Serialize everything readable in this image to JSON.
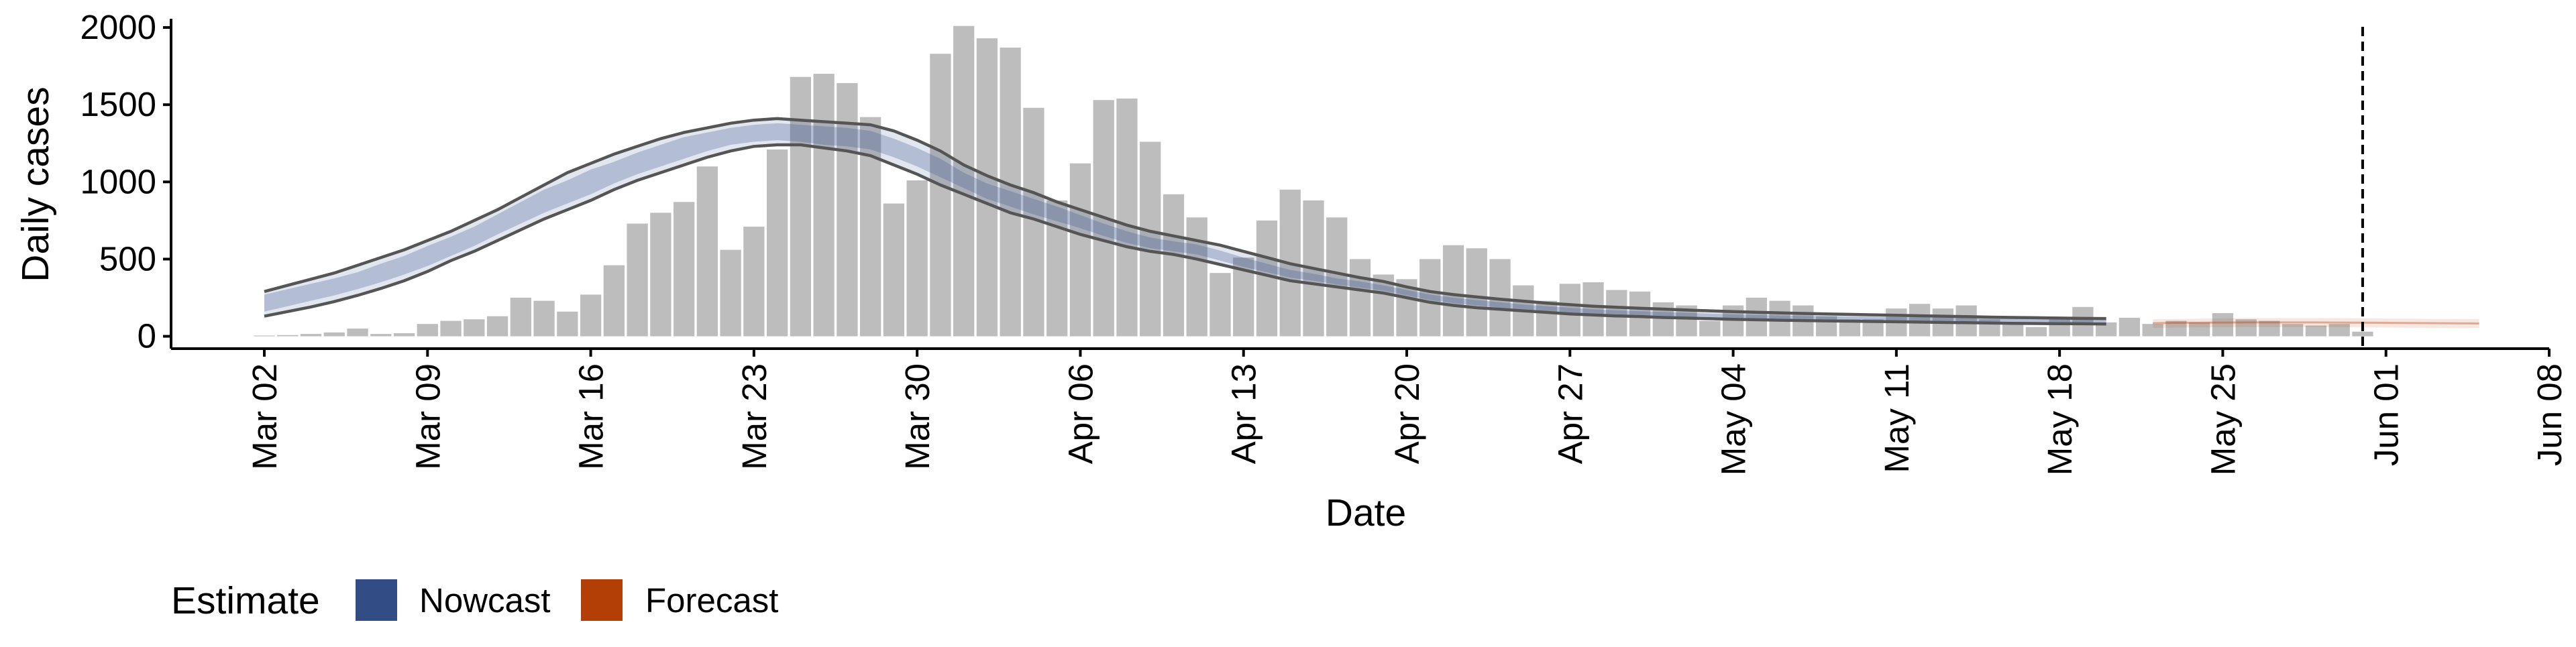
{
  "chart_data": {
    "type": "bar",
    "xlabel": "Date",
    "ylabel": "Daily cases",
    "ylim": [
      -80,
      2100
    ],
    "xlim": [
      "2020-02-27",
      "2020-06-08"
    ],
    "y_ticks": [
      0,
      500,
      1000,
      1500,
      2000
    ],
    "y_tick_labels": [
      "0",
      "500",
      "1000",
      "1500",
      "2000"
    ],
    "x_ticks": [
      "2020-03-02",
      "2020-03-09",
      "2020-03-16",
      "2020-03-23",
      "2020-03-30",
      "2020-04-06",
      "2020-04-13",
      "2020-04-20",
      "2020-04-27",
      "2020-05-04",
      "2020-05-11",
      "2020-05-18",
      "2020-05-25",
      "2020-06-01",
      "2020-06-08"
    ],
    "x_tick_labels": [
      "Mar 02",
      "Mar 09",
      "Mar 16",
      "Mar 23",
      "Mar 30",
      "Apr 06",
      "Apr 13",
      "Apr 20",
      "Apr 27",
      "May 04",
      "May 11",
      "May 18",
      "May 25",
      "Jun 01",
      "Jun 08"
    ],
    "grid": false,
    "vline_date": "2020-05-31",
    "bars": {
      "start_date": "2020-03-02",
      "values": [
        5,
        8,
        15,
        25,
        50,
        15,
        20,
        80,
        100,
        110,
        130,
        250,
        230,
        160,
        270,
        460,
        730,
        800,
        870,
        1100,
        560,
        710,
        1210,
        1680,
        1700,
        1640,
        1420,
        860,
        1010,
        1830,
        2010,
        1930,
        1870,
        1480,
        880,
        1120,
        1530,
        1540,
        1260,
        920,
        770,
        410,
        510,
        750,
        950,
        880,
        770,
        500,
        400,
        370,
        500,
        590,
        570,
        500,
        330,
        230,
        340,
        350,
        300,
        290,
        220,
        200,
        100,
        200,
        250,
        230,
        200,
        130,
        110,
        110,
        180,
        210,
        180,
        200,
        110,
        90,
        60,
        120,
        190,
        90,
        120,
        80,
        100,
        90,
        150,
        110,
        100,
        80,
        70,
        80,
        30
      ],
      "color": "#bdbdbd"
    },
    "estimate": {
      "start_date": "2020-03-02",
      "median": [
        215,
        250,
        285,
        320,
        360,
        410,
        460,
        520,
        580,
        645,
        720,
        800,
        880,
        930,
        1000,
        1060,
        1120,
        1170,
        1220,
        1260,
        1300,
        1320,
        1330,
        1310,
        1300,
        1290,
        1270,
        1220,
        1160,
        1090,
        1010,
        940,
        890,
        840,
        790,
        740,
        690,
        640,
        600,
        580,
        560,
        520,
        480,
        440,
        400,
        380,
        350,
        330,
        310,
        280,
        250,
        230,
        215,
        200,
        190,
        180,
        170,
        160,
        155,
        150,
        145,
        140,
        135,
        130,
        127,
        124,
        122,
        120,
        118,
        116,
        114,
        112,
        110,
        108,
        106,
        104,
        103,
        102,
        101,
        100
      ],
      "ci50_lower": [
        160,
        195,
        230,
        265,
        305,
        350,
        400,
        455,
        520,
        585,
        660,
        730,
        800,
        860,
        920,
        990,
        1050,
        1100,
        1150,
        1200,
        1240,
        1260,
        1270,
        1260,
        1240,
        1230,
        1210,
        1160,
        1100,
        1030,
        960,
        890,
        840,
        790,
        745,
        700,
        650,
        605,
        570,
        550,
        530,
        490,
        450,
        415,
        380,
        360,
        335,
        315,
        295,
        265,
        235,
        215,
        200,
        185,
        175,
        165,
        155,
        148,
        142,
        138,
        132,
        128,
        124,
        120,
        117,
        114,
        112,
        110,
        108,
        106,
        104,
        102,
        100,
        98,
        96,
        94,
        93,
        92,
        91,
        90
      ],
      "ci50_upper": [
        270,
        305,
        340,
        375,
        415,
        470,
        520,
        585,
        645,
        710,
        790,
        870,
        950,
        1010,
        1080,
        1130,
        1190,
        1240,
        1290,
        1320,
        1350,
        1370,
        1380,
        1370,
        1360,
        1350,
        1330,
        1280,
        1220,
        1150,
        1060,
        990,
        940,
        890,
        840,
        785,
        730,
        680,
        640,
        615,
        595,
        555,
        510,
        470,
        430,
        405,
        375,
        355,
        330,
        300,
        270,
        250,
        235,
        220,
        205,
        195,
        185,
        175,
        168,
        162,
        158,
        152,
        147,
        142,
        138,
        135,
        132,
        130,
        128,
        126,
        124,
        122,
        120,
        118,
        116,
        114,
        113,
        112,
        111,
        110
      ],
      "ci90_lower": [
        130,
        160,
        190,
        225,
        265,
        310,
        360,
        420,
        490,
        550,
        620,
        690,
        760,
        820,
        880,
        950,
        1010,
        1060,
        1110,
        1160,
        1200,
        1230,
        1240,
        1240,
        1220,
        1200,
        1170,
        1110,
        1050,
        980,
        920,
        860,
        800,
        760,
        710,
        660,
        620,
        580,
        550,
        530,
        500,
        465,
        430,
        395,
        360,
        340,
        320,
        300,
        280,
        250,
        220,
        200,
        185,
        175,
        165,
        155,
        145,
        138,
        132,
        128,
        122,
        118,
        114,
        110,
        107,
        104,
        102,
        100,
        98,
        96,
        94,
        92,
        90,
        88,
        86,
        84,
        83,
        82,
        81,
        80
      ],
      "ci90_upper": [
        290,
        330,
        370,
        410,
        460,
        510,
        560,
        620,
        680,
        750,
        820,
        900,
        980,
        1060,
        1120,
        1180,
        1230,
        1280,
        1320,
        1350,
        1380,
        1400,
        1410,
        1400,
        1390,
        1380,
        1370,
        1330,
        1270,
        1200,
        1110,
        1040,
        980,
        930,
        870,
        820,
        770,
        720,
        680,
        650,
        620,
        590,
        550,
        510,
        470,
        440,
        410,
        380,
        355,
        320,
        290,
        270,
        255,
        240,
        228,
        215,
        205,
        195,
        188,
        182,
        176,
        170,
        165,
        160,
        156,
        152,
        148,
        145,
        142,
        139,
        136,
        133,
        130,
        127,
        124,
        122,
        120,
        118,
        116,
        115
      ],
      "color": "#3a5593"
    },
    "forecast": {
      "start_date": "2020-05-22",
      "median": [
        85,
        87,
        88,
        89,
        90,
        90,
        90,
        90,
        89,
        88,
        87,
        86,
        85,
        84,
        83
      ],
      "ci90_lower": [
        55,
        57,
        58,
        59,
        60,
        60,
        60,
        60,
        59,
        58,
        57,
        56,
        55,
        54,
        53
      ],
      "ci90_upper": [
        110,
        112,
        114,
        116,
        118,
        118,
        118,
        118,
        117,
        116,
        115,
        114,
        113,
        112,
        111
      ],
      "color": "#b23a0a"
    },
    "legend": {
      "title": "Estimate",
      "position": "bottom-left",
      "entries": [
        {
          "label": "Nowcast",
          "color": "#324d86"
        },
        {
          "label": "Forecast",
          "color": "#b33f06"
        }
      ]
    }
  }
}
